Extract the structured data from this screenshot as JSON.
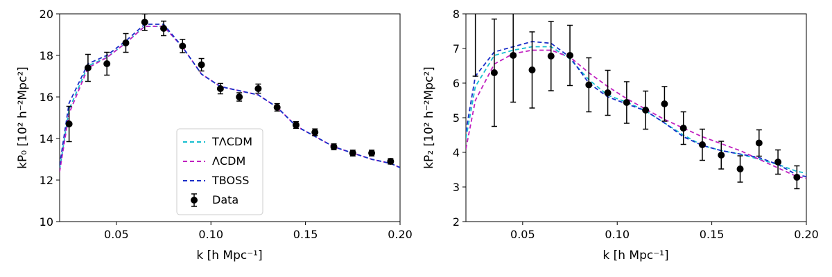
{
  "chart_data": [
    {
      "type": "line",
      "xlabel": "k [h Mpc⁻¹]",
      "ylabel": "kP₀ [10² h⁻²Mpc²]",
      "xlim": [
        0.02,
        0.2
      ],
      "ylim": [
        10,
        20
      ],
      "xticks": [
        0.05,
        0.1,
        0.15,
        0.2
      ],
      "xtick_labels": [
        "0.05",
        "0.10",
        "0.15",
        "0.20"
      ],
      "yticks": [
        10,
        12,
        14,
        16,
        18,
        20
      ],
      "ytick_labels": [
        "10",
        "12",
        "14",
        "16",
        "18",
        "20"
      ],
      "grid": false,
      "legend": {
        "placement": "lower-center",
        "entries": [
          "TΛCDM",
          "ΛCDM",
          "TBOSS",
          "Data"
        ]
      },
      "series": [
        {
          "name": "TΛCDM",
          "style": "dashed",
          "color": "#17becf",
          "x": [
            0.02,
            0.025,
            0.035,
            0.045,
            0.055,
            0.065,
            0.075,
            0.085,
            0.095,
            0.105,
            0.115,
            0.125,
            0.135,
            0.145,
            0.155,
            0.165,
            0.175,
            0.185,
            0.195,
            0.2
          ],
          "y": [
            12.5,
            15.4,
            17.5,
            17.9,
            18.6,
            19.4,
            19.4,
            18.4,
            17.1,
            16.5,
            16.3,
            16.1,
            15.5,
            14.6,
            14.1,
            13.6,
            13.3,
            13.0,
            12.8,
            12.6
          ]
        },
        {
          "name": "ΛCDM",
          "style": "dashed",
          "color": "#c020c0",
          "x": [
            0.02,
            0.025,
            0.035,
            0.045,
            0.055,
            0.065,
            0.075,
            0.085,
            0.095,
            0.105,
            0.115,
            0.125,
            0.135,
            0.145,
            0.155,
            0.165,
            0.175,
            0.185,
            0.195,
            0.2
          ],
          "y": [
            12.4,
            15.2,
            17.4,
            17.9,
            18.6,
            19.4,
            19.4,
            18.4,
            17.1,
            16.5,
            16.3,
            16.1,
            15.5,
            14.6,
            14.1,
            13.6,
            13.3,
            13.0,
            12.8,
            12.6
          ]
        },
        {
          "name": "TBOSS",
          "style": "dashed",
          "color": "#1a2ec8",
          "x": [
            0.02,
            0.025,
            0.035,
            0.045,
            0.055,
            0.065,
            0.075,
            0.085,
            0.095,
            0.105,
            0.115,
            0.125,
            0.135,
            0.145,
            0.155,
            0.165,
            0.175,
            0.185,
            0.195,
            0.2
          ],
          "y": [
            12.7,
            15.7,
            17.6,
            18.0,
            18.7,
            19.5,
            19.5,
            18.4,
            17.1,
            16.5,
            16.3,
            16.1,
            15.5,
            14.6,
            14.1,
            13.6,
            13.3,
            13.0,
            12.8,
            12.6
          ]
        }
      ],
      "data_points": {
        "name": "Data",
        "color": "#000000",
        "x": [
          0.025,
          0.035,
          0.045,
          0.055,
          0.065,
          0.075,
          0.085,
          0.095,
          0.105,
          0.115,
          0.125,
          0.135,
          0.145,
          0.155,
          0.165,
          0.175,
          0.185,
          0.195
        ],
        "y": [
          14.7,
          17.4,
          17.6,
          18.6,
          19.6,
          19.3,
          18.45,
          17.55,
          16.4,
          16.0,
          16.4,
          15.5,
          14.65,
          14.3,
          13.6,
          13.3,
          13.3,
          12.9
        ],
        "yerr": [
          0.85,
          0.65,
          0.55,
          0.45,
          0.4,
          0.35,
          0.32,
          0.3,
          0.25,
          0.2,
          0.22,
          0.18,
          0.16,
          0.16,
          0.14,
          0.14,
          0.14,
          0.13
        ]
      }
    },
    {
      "type": "line",
      "xlabel": "k [h Mpc⁻¹]",
      "ylabel": "kP₂ [10² h⁻²Mpc²]",
      "xlim": [
        0.02,
        0.2
      ],
      "ylim": [
        2,
        8
      ],
      "xticks": [
        0.05,
        0.1,
        0.15,
        0.2
      ],
      "xtick_labels": [
        "0.05",
        "0.10",
        "0.15",
        "0.20"
      ],
      "yticks": [
        2,
        3,
        4,
        5,
        6,
        7,
        8
      ],
      "ytick_labels": [
        "2",
        "3",
        "4",
        "5",
        "6",
        "7",
        "8"
      ],
      "grid": false,
      "series": [
        {
          "name": "TΛCDM",
          "style": "dashed",
          "color": "#17becf",
          "x": [
            0.02,
            0.025,
            0.035,
            0.045,
            0.055,
            0.065,
            0.075,
            0.085,
            0.095,
            0.105,
            0.115,
            0.125,
            0.135,
            0.145,
            0.155,
            0.165,
            0.175,
            0.185,
            0.195,
            0.2
          ],
          "y": [
            4.4,
            5.9,
            6.8,
            6.95,
            7.05,
            7.05,
            6.7,
            6.1,
            5.65,
            5.45,
            5.2,
            4.85,
            4.5,
            4.2,
            4.05,
            3.95,
            3.8,
            3.65,
            3.45,
            3.4
          ]
        },
        {
          "name": "ΛCDM",
          "style": "dashed",
          "color": "#c020c0",
          "x": [
            0.02,
            0.025,
            0.035,
            0.045,
            0.055,
            0.065,
            0.075,
            0.085,
            0.095,
            0.105,
            0.115,
            0.125,
            0.135,
            0.145,
            0.155,
            0.165,
            0.175,
            0.185,
            0.195,
            0.2
          ],
          "y": [
            4.1,
            5.5,
            6.55,
            6.85,
            6.95,
            6.95,
            6.75,
            6.3,
            5.9,
            5.55,
            5.25,
            4.95,
            4.7,
            4.45,
            4.25,
            4.05,
            3.8,
            3.55,
            3.3,
            3.25
          ]
        },
        {
          "name": "TBOSS",
          "style": "dashed",
          "color": "#1a2ec8",
          "x": [
            0.02,
            0.025,
            0.035,
            0.045,
            0.055,
            0.065,
            0.075,
            0.085,
            0.095,
            0.105,
            0.115,
            0.125,
            0.135,
            0.145,
            0.155,
            0.165,
            0.175,
            0.185,
            0.195,
            0.2
          ],
          "y": [
            4.6,
            6.2,
            6.9,
            7.05,
            7.2,
            7.15,
            6.75,
            6.0,
            5.6,
            5.4,
            5.2,
            4.85,
            4.45,
            4.2,
            4.05,
            3.95,
            3.85,
            3.65,
            3.35,
            3.3
          ]
        }
      ],
      "data_points": {
        "name": "Data",
        "color": "#000000",
        "x": [
          0.035,
          0.045,
          0.055,
          0.065,
          0.075,
          0.085,
          0.095,
          0.105,
          0.115,
          0.125,
          0.135,
          0.145,
          0.155,
          0.165,
          0.175,
          0.185,
          0.195
        ],
        "y": [
          6.3,
          6.8,
          6.38,
          6.78,
          6.8,
          5.95,
          5.72,
          5.44,
          5.22,
          5.4,
          4.7,
          4.22,
          3.92,
          3.52,
          4.27,
          3.72,
          3.28
        ],
        "yerr": [
          1.55,
          1.35,
          1.1,
          1.0,
          0.87,
          0.78,
          0.65,
          0.6,
          0.55,
          0.5,
          0.47,
          0.45,
          0.4,
          0.38,
          0.38,
          0.35,
          0.33
        ]
      },
      "partial_error_bars": [
        {
          "x": 0.025,
          "top": 8.0,
          "bottom": 6.2
        }
      ]
    }
  ]
}
